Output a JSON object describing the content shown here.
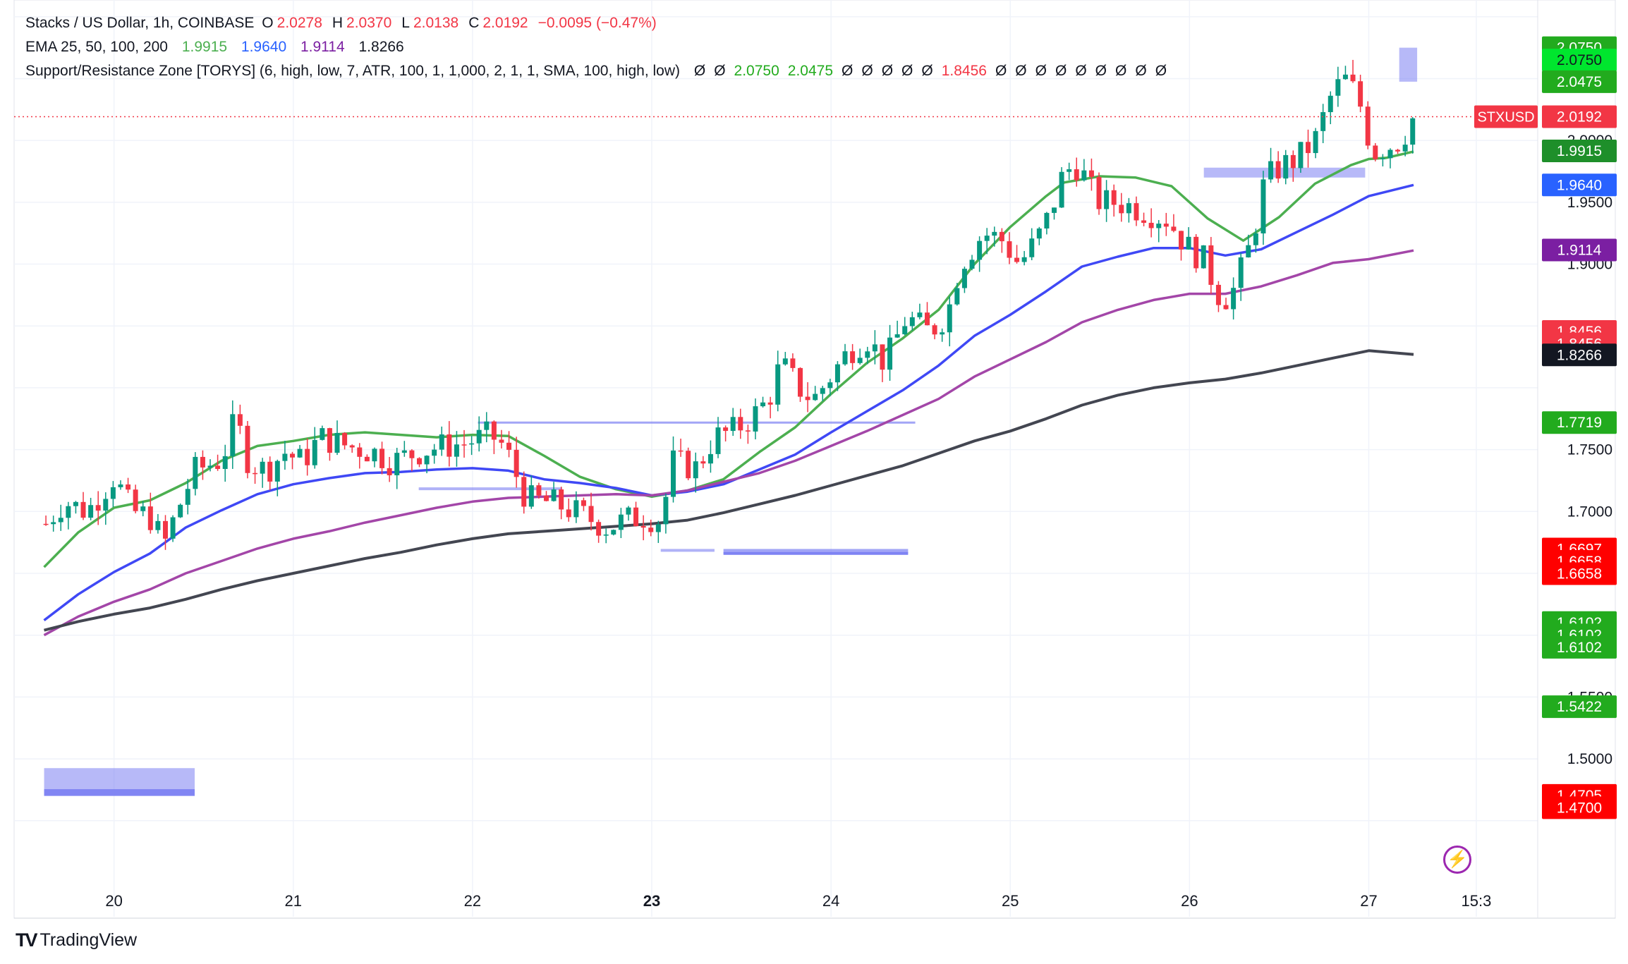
{
  "header": {
    "symbol": "Stacks / US Dollar, 1h, COINBASE",
    "o_label": "O",
    "o": "2.0278",
    "h_label": "H",
    "h": "2.0370",
    "l_label": "L",
    "l": "2.0138",
    "c_label": "C",
    "c": "2.0192",
    "change": "−0.0095 (−0.47%)"
  },
  "ema_legend": {
    "label": "EMA 25, 50, 100, 200",
    "v25": "1.9915",
    "v50": "1.9640",
    "v100": "1.9114",
    "v200": "1.8266"
  },
  "sr_legend": {
    "label": "Support/Resistance Zone [TORYS] (6, high, low, 7, ATR, 100, 1, 1,000, 2, 1, 1, SMA, 100, high, low)",
    "values": [
      "Ø",
      "Ø",
      "2.0750",
      "2.0475",
      "Ø",
      "Ø",
      "Ø",
      "Ø",
      "Ø",
      "1.8456",
      "Ø",
      "Ø",
      "Ø",
      "Ø",
      "Ø",
      "Ø",
      "Ø",
      "Ø",
      "Ø"
    ],
    "value_colors": [
      "#131722",
      "#131722",
      "#22ab1e",
      "#22ab1e",
      "#131722",
      "#131722",
      "#131722",
      "#131722",
      "#131722",
      "#f23645",
      "#131722",
      "#131722",
      "#131722",
      "#131722",
      "#131722",
      "#131722",
      "#131722",
      "#131722",
      "#131722"
    ]
  },
  "colors": {
    "up": "#089981",
    "down": "#f23645",
    "ema25": "#4caf50",
    "ema50": "#3f48f5",
    "ema100": "#a346a8",
    "ema200": "#434651",
    "zone": "#7b7ff2"
  },
  "branding": {
    "logo_mark": "TV",
    "logo_text": "TradingView"
  },
  "chart_data": {
    "type": "candlestick",
    "title": "Stacks / US Dollar, 1h, COINBASE",
    "ylim": [
      1.455,
      2.105
    ],
    "price_ticks": [
      "1.5000",
      "1.5500",
      "1.9000",
      "1.9500",
      "1.7000",
      "1.7500",
      "2.0000"
    ],
    "x_ticks": [
      {
        "label": "20",
        "x": 20,
        "bold": false
      },
      {
        "label": "21",
        "x": 21,
        "bold": false
      },
      {
        "label": "22",
        "x": 22,
        "bold": false
      },
      {
        "label": "23",
        "x": 23,
        "bold": true
      },
      {
        "label": "24",
        "x": 24,
        "bold": false
      },
      {
        "label": "25",
        "x": 25,
        "bold": false
      },
      {
        "label": "26",
        "x": 26,
        "bold": false
      },
      {
        "label": "27",
        "x": 27,
        "bold": false
      },
      {
        "label": "15:3",
        "x": 27.6,
        "bold": false
      }
    ],
    "x_range": [
      19.6,
      28.1
    ],
    "last_price": 2.0192,
    "symbol_label": "STXUSD",
    "ema_series": [
      {
        "name": "EMA 25",
        "points": [
          [
            19.61,
            1.655
          ],
          [
            19.8,
            1.683
          ],
          [
            20.0,
            1.703
          ],
          [
            20.2,
            1.709
          ],
          [
            20.4,
            1.723
          ],
          [
            20.6,
            1.741
          ],
          [
            20.8,
            1.753
          ],
          [
            21.0,
            1.757
          ],
          [
            21.2,
            1.762
          ],
          [
            21.4,
            1.764
          ],
          [
            21.6,
            1.762
          ],
          [
            21.8,
            1.76
          ],
          [
            22.0,
            1.762
          ],
          [
            22.2,
            1.761
          ],
          [
            22.4,
            1.745
          ],
          [
            22.6,
            1.728
          ],
          [
            22.8,
            1.718
          ],
          [
            23.0,
            1.712
          ],
          [
            23.2,
            1.717
          ],
          [
            23.4,
            1.726
          ],
          [
            23.6,
            1.748
          ],
          [
            23.8,
            1.768
          ],
          [
            24.0,
            1.795
          ],
          [
            24.2,
            1.82
          ],
          [
            24.4,
            1.84
          ],
          [
            24.6,
            1.863
          ],
          [
            24.8,
            1.9
          ],
          [
            25.0,
            1.93
          ],
          [
            25.2,
            1.955
          ],
          [
            25.3,
            1.966
          ],
          [
            25.5,
            1.971
          ],
          [
            25.7,
            1.97
          ],
          [
            25.9,
            1.963
          ],
          [
            26.1,
            1.937
          ],
          [
            26.3,
            1.919
          ],
          [
            26.5,
            1.938
          ],
          [
            26.7,
            1.965
          ],
          [
            26.9,
            1.98
          ],
          [
            27.0,
            1.985
          ],
          [
            27.1,
            1.986
          ],
          [
            27.25,
            1.991
          ]
        ]
      },
      {
        "name": "EMA 50",
        "points": [
          [
            19.61,
            1.612
          ],
          [
            19.8,
            1.633
          ],
          [
            20.0,
            1.651
          ],
          [
            20.2,
            1.666
          ],
          [
            20.4,
            1.687
          ],
          [
            20.6,
            1.701
          ],
          [
            20.8,
            1.714
          ],
          [
            21.0,
            1.722
          ],
          [
            21.2,
            1.727
          ],
          [
            21.4,
            1.731
          ],
          [
            21.6,
            1.732
          ],
          [
            21.8,
            1.734
          ],
          [
            22.0,
            1.735
          ],
          [
            22.2,
            1.733
          ],
          [
            22.4,
            1.726
          ],
          [
            22.6,
            1.723
          ],
          [
            22.8,
            1.719
          ],
          [
            23.0,
            1.713
          ],
          [
            23.2,
            1.716
          ],
          [
            23.4,
            1.722
          ],
          [
            23.6,
            1.734
          ],
          [
            23.8,
            1.746
          ],
          [
            24.0,
            1.764
          ],
          [
            24.2,
            1.781
          ],
          [
            24.4,
            1.798
          ],
          [
            24.6,
            1.818
          ],
          [
            24.8,
            1.842
          ],
          [
            25.0,
            1.859
          ],
          [
            25.2,
            1.878
          ],
          [
            25.4,
            1.898
          ],
          [
            25.6,
            1.906
          ],
          [
            25.8,
            1.913
          ],
          [
            26.0,
            1.913
          ],
          [
            26.2,
            1.907
          ],
          [
            26.4,
            1.912
          ],
          [
            26.6,
            1.926
          ],
          [
            26.8,
            1.94
          ],
          [
            27.0,
            1.955
          ],
          [
            27.25,
            1.964
          ]
        ]
      },
      {
        "name": "EMA 100",
        "points": [
          [
            19.61,
            1.6
          ],
          [
            19.8,
            1.615
          ],
          [
            20.0,
            1.627
          ],
          [
            20.2,
            1.637
          ],
          [
            20.4,
            1.65
          ],
          [
            20.6,
            1.66
          ],
          [
            20.8,
            1.67
          ],
          [
            21.0,
            1.678
          ],
          [
            21.2,
            1.684
          ],
          [
            21.4,
            1.691
          ],
          [
            21.6,
            1.697
          ],
          [
            21.8,
            1.703
          ],
          [
            22.0,
            1.708
          ],
          [
            22.2,
            1.711
          ],
          [
            22.4,
            1.712
          ],
          [
            22.6,
            1.713
          ],
          [
            22.8,
            1.714
          ],
          [
            23.0,
            1.713
          ],
          [
            23.2,
            1.717
          ],
          [
            23.4,
            1.724
          ],
          [
            23.6,
            1.731
          ],
          [
            23.8,
            1.741
          ],
          [
            24.0,
            1.753
          ],
          [
            24.2,
            1.765
          ],
          [
            24.4,
            1.778
          ],
          [
            24.6,
            1.791
          ],
          [
            24.8,
            1.809
          ],
          [
            25.0,
            1.823
          ],
          [
            25.2,
            1.837
          ],
          [
            25.4,
            1.853
          ],
          [
            25.6,
            1.863
          ],
          [
            25.8,
            1.871
          ],
          [
            26.0,
            1.876
          ],
          [
            26.2,
            1.876
          ],
          [
            26.4,
            1.882
          ],
          [
            26.6,
            1.891
          ],
          [
            26.8,
            1.901
          ],
          [
            27.0,
            1.904
          ],
          [
            27.25,
            1.911
          ]
        ]
      },
      {
        "name": "EMA 200",
        "points": [
          [
            19.61,
            1.604
          ],
          [
            19.8,
            1.611
          ],
          [
            20.0,
            1.617
          ],
          [
            20.2,
            1.622
          ],
          [
            20.4,
            1.629
          ],
          [
            20.6,
            1.637
          ],
          [
            20.8,
            1.644
          ],
          [
            21.0,
            1.65
          ],
          [
            21.2,
            1.656
          ],
          [
            21.4,
            1.662
          ],
          [
            21.6,
            1.667
          ],
          [
            21.8,
            1.673
          ],
          [
            22.0,
            1.678
          ],
          [
            22.2,
            1.682
          ],
          [
            22.4,
            1.684
          ],
          [
            22.6,
            1.686
          ],
          [
            22.8,
            1.688
          ],
          [
            23.0,
            1.69
          ],
          [
            23.2,
            1.693
          ],
          [
            23.4,
            1.699
          ],
          [
            23.6,
            1.706
          ],
          [
            23.8,
            1.713
          ],
          [
            24.0,
            1.721
          ],
          [
            24.2,
            1.729
          ],
          [
            24.4,
            1.737
          ],
          [
            24.6,
            1.747
          ],
          [
            24.8,
            1.757
          ],
          [
            25.0,
            1.765
          ],
          [
            25.2,
            1.775
          ],
          [
            25.4,
            1.786
          ],
          [
            25.6,
            1.794
          ],
          [
            25.8,
            1.8
          ],
          [
            26.0,
            1.804
          ],
          [
            26.2,
            1.807
          ],
          [
            26.4,
            1.812
          ],
          [
            26.6,
            1.818
          ],
          [
            26.8,
            1.824
          ],
          [
            27.0,
            1.83
          ],
          [
            27.25,
            1.827
          ]
        ]
      }
    ],
    "zones": [
      {
        "x0": 19.61,
        "x1": 20.45,
        "top": 1.4925,
        "bottom": 1.4705,
        "opacity": 0.55
      },
      {
        "x0": 19.61,
        "x1": 20.45,
        "top": 1.4755,
        "bottom": 1.47,
        "opacity": 0.9
      },
      {
        "x0": 21.7,
        "x1": 22.5,
        "top": 1.7195,
        "bottom": 1.7175,
        "opacity": 0.6
      },
      {
        "x0": 23.05,
        "x1": 23.35,
        "top": 1.6697,
        "bottom": 1.6677,
        "opacity": 0.6
      },
      {
        "x0": 23.4,
        "x1": 24.43,
        "top": 1.6697,
        "bottom": 1.6658,
        "opacity": 0.7
      },
      {
        "x0": 23.4,
        "x1": 24.43,
        "top": 1.6672,
        "bottom": 1.6658,
        "opacity": 0.95
      },
      {
        "x0": 26.08,
        "x1": 26.98,
        "top": 1.978,
        "bottom": 1.97,
        "opacity": 0.55
      },
      {
        "x0": 27.17,
        "x1": 27.27,
        "top": 2.075,
        "bottom": 2.0475,
        "opacity": 0.55
      }
    ],
    "dashed_lines": [
      {
        "x0": 22.03,
        "x1": 24.47,
        "y": 1.7719
      }
    ],
    "axis_labels": [
      {
        "text": "2.0750",
        "y": 2.075,
        "bg": "#22ab1e",
        "fg": "#ffffff"
      },
      {
        "text": "2.0750",
        "y": 2.065,
        "bg": "#00e62e",
        "fg": "#131722"
      },
      {
        "text": "2.0475",
        "y": 2.0475,
        "bg": "#22ab1e",
        "fg": "#ffffff"
      },
      {
        "text": "2.0192",
        "y": 2.0192,
        "bg": "#f23645",
        "fg": "#ffffff"
      },
      {
        "text": "1.9915",
        "y": 1.9915,
        "bg": "#1e8f2a",
        "fg": "#ffffff"
      },
      {
        "text": "1.9640",
        "y": 1.964,
        "bg": "#2962ff",
        "fg": "#ffffff"
      },
      {
        "text": "1.9114",
        "y": 1.9114,
        "bg": "#7b1fa2",
        "fg": "#ffffff"
      },
      {
        "text": "1.8456",
        "y": 1.8456,
        "bg": "#f23645",
        "fg": "#ffffff"
      },
      {
        "text": "1.8456",
        "y": 1.8356,
        "bg": "#f23645",
        "fg": "#ffffff"
      },
      {
        "text": "1.8266",
        "y": 1.8266,
        "bg": "#131722",
        "fg": "#ffffff"
      },
      {
        "text": "1.7719",
        "y": 1.7719,
        "bg": "#22ab1e",
        "fg": "#ffffff"
      },
      {
        "text": "1.6697",
        "y": 1.6697,
        "bg": "#ff0000",
        "fg": "#ffffff"
      },
      {
        "text": "1.6658",
        "y": 1.6597,
        "bg": "#ff0000",
        "fg": "#ffffff"
      },
      {
        "text": "1.6658",
        "y": 1.6497,
        "bg": "#ff0000",
        "fg": "#ffffff"
      },
      {
        "text": "1.6102",
        "y": 1.6102,
        "bg": "#22ab1e",
        "fg": "#ffffff"
      },
      {
        "text": "1.6102",
        "y": 1.6002,
        "bg": "#22ab1e",
        "fg": "#ffffff"
      },
      {
        "text": "1.6102",
        "y": 1.5902,
        "bg": "#22ab1e",
        "fg": "#ffffff"
      },
      {
        "text": "1.5422",
        "y": 1.5422,
        "bg": "#22ab1e",
        "fg": "#ffffff"
      },
      {
        "text": "1.4705",
        "y": 1.4705,
        "bg": "#ff0000",
        "fg": "#ffffff"
      },
      {
        "text": "1.4700",
        "y": 1.4605,
        "bg": "#ff0000",
        "fg": "#ffffff"
      }
    ],
    "price_tick_values": [
      1.5,
      1.55,
      1.9,
      1.95,
      1.7,
      1.75,
      2.0
    ],
    "candles_anchor": [
      [
        19.62,
        1.69
      ],
      [
        19.72,
        1.708
      ],
      [
        19.85,
        1.7
      ],
      [
        20.0,
        1.728
      ],
      [
        20.1,
        1.7
      ],
      [
        20.2,
        1.696
      ],
      [
        20.28,
        1.673
      ],
      [
        20.35,
        1.7
      ],
      [
        20.45,
        1.733
      ],
      [
        20.6,
        1.742
      ],
      [
        20.68,
        1.775
      ],
      [
        20.75,
        1.74
      ],
      [
        20.85,
        1.733
      ],
      [
        20.95,
        1.748
      ],
      [
        21.05,
        1.74
      ],
      [
        21.15,
        1.76
      ],
      [
        21.3,
        1.753
      ],
      [
        21.45,
        1.748
      ],
      [
        21.55,
        1.74
      ],
      [
        21.65,
        1.746
      ],
      [
        21.8,
        1.752
      ],
      [
        21.95,
        1.755
      ],
      [
        22.1,
        1.762
      ],
      [
        22.18,
        1.752
      ],
      [
        22.3,
        1.71
      ],
      [
        22.45,
        1.707
      ],
      [
        22.6,
        1.698
      ],
      [
        22.75,
        1.687
      ],
      [
        22.85,
        1.693
      ],
      [
        22.95,
        1.696
      ],
      [
        23.05,
        1.693
      ],
      [
        23.12,
        1.74
      ],
      [
        23.25,
        1.735
      ],
      [
        23.35,
        1.76
      ],
      [
        23.45,
        1.765
      ],
      [
        23.55,
        1.775
      ],
      [
        23.65,
        1.79
      ],
      [
        23.72,
        1.82
      ],
      [
        23.82,
        1.8
      ],
      [
        23.9,
        1.79
      ],
      [
        24.0,
        1.81
      ],
      [
        24.1,
        1.83
      ],
      [
        24.2,
        1.84
      ],
      [
        24.3,
        1.82
      ],
      [
        24.42,
        1.857
      ],
      [
        24.55,
        1.845
      ],
      [
        24.65,
        1.86
      ],
      [
        24.72,
        1.9
      ],
      [
        24.85,
        1.925
      ],
      [
        24.95,
        1.92
      ],
      [
        25.05,
        1.9
      ],
      [
        25.15,
        1.92
      ],
      [
        25.22,
        1.94
      ],
      [
        25.3,
        1.975
      ],
      [
        25.38,
        1.98
      ],
      [
        25.45,
        1.96
      ],
      [
        25.5,
        1.95
      ],
      [
        25.6,
        1.95
      ],
      [
        25.75,
        1.943
      ],
      [
        25.88,
        1.936
      ],
      [
        25.98,
        1.915
      ],
      [
        26.08,
        1.903
      ],
      [
        26.18,
        1.87
      ],
      [
        26.25,
        1.88
      ],
      [
        26.35,
        1.92
      ],
      [
        26.42,
        1.968
      ],
      [
        26.52,
        1.98
      ],
      [
        26.6,
        1.985
      ],
      [
        26.7,
        2.0
      ],
      [
        26.8,
        2.04
      ],
      [
        26.88,
        2.05
      ],
      [
        26.95,
        2.03
      ],
      [
        27.02,
        1.99
      ],
      [
        27.1,
        1.995
      ],
      [
        27.18,
        2.0
      ],
      [
        27.25,
        2.019
      ]
    ]
  }
}
